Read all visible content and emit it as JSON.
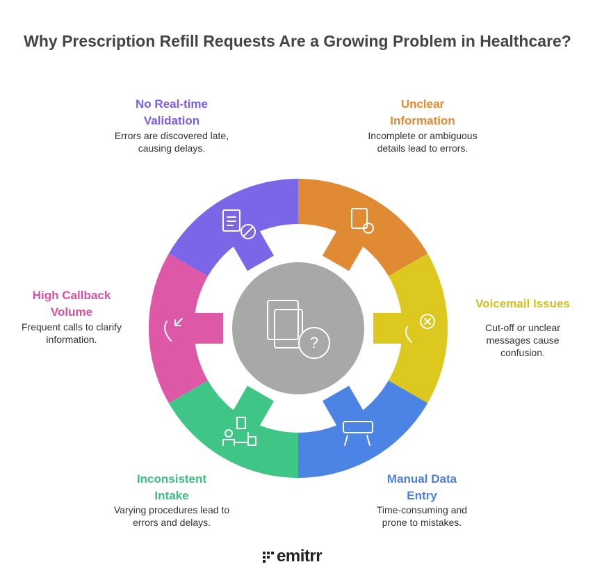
{
  "title": "Why Prescription Refill Requests Are a Growing Problem in Healthcare?",
  "segments": [
    {
      "title": "Unclear Information",
      "description": "Incomplete or ambiguous details lead to errors."
    },
    {
      "title": "Voicemail Issues",
      "description": "Cut-off or unclear messages cause confusion."
    },
    {
      "title": "Manual Data Entry",
      "description": "Time-consuming and prone to mistakes."
    },
    {
      "title": "Inconsistent Intake",
      "description": "Varying procedures lead to errors and delays."
    },
    {
      "title": "High Callback Volume",
      "description": "Frequent calls to clarify information."
    },
    {
      "title": "No Real-time Validation",
      "description": "Errors are discovered late, causing delays."
    }
  ],
  "logo": "emitrr"
}
